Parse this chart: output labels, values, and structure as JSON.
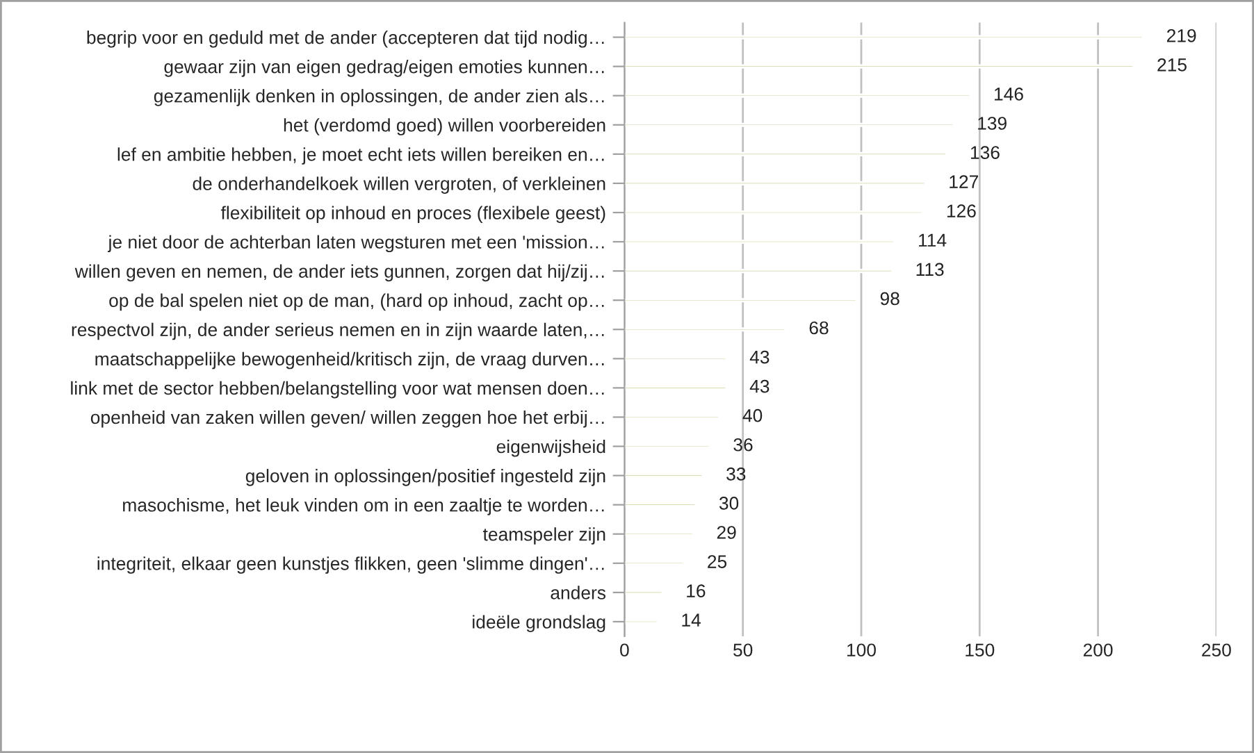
{
  "chart_data": {
    "type": "bar",
    "orientation": "horizontal",
    "categories": [
      "begrip voor en geduld met de ander (accepteren dat tijd nodig…",
      "gewaar zijn van eigen gedrag/eigen emoties kunnen…",
      "gezamenlijk denken in oplossingen, de ander zien als…",
      "het (verdomd goed) willen voorbereiden",
      "lef en ambitie hebben, je moet echt iets willen bereiken en…",
      "de onderhandelkoek willen vergroten, of verkleinen",
      "flexibiliteit op inhoud en proces (flexibele geest)",
      "je niet door de achterban laten wegsturen met een 'mission…",
      "willen geven en nemen, de ander iets gunnen, zorgen dat hij/zij…",
      "op de bal spelen niet op de man, (hard op inhoud, zacht op…",
      "respectvol zijn, de ander serieus nemen en in zijn waarde laten,…",
      "maatschappelijke bewogenheid/kritisch zijn, de vraag durven…",
      "link met de sector hebben/belangstelling voor wat mensen doen…",
      "openheid van zaken willen geven/ willen zeggen hoe het erbij…",
      "eigenwijsheid",
      "geloven in oplossingen/positief ingesteld zijn",
      "masochisme, het leuk vinden om in een zaaltje te worden…",
      "teamspeler zijn",
      "integriteit, elkaar geen kunstjes flikken, geen 'slimme dingen'…",
      "anders",
      "ideële grondslag"
    ],
    "values": [
      219,
      215,
      146,
      139,
      136,
      127,
      126,
      114,
      113,
      98,
      68,
      43,
      43,
      40,
      36,
      33,
      30,
      29,
      25,
      16,
      14
    ],
    "color": "#c4d79b",
    "xlim": [
      0,
      250
    ],
    "xticks": [
      0,
      50,
      100,
      150,
      200,
      250
    ],
    "grid": "x",
    "data_labels": true
  }
}
